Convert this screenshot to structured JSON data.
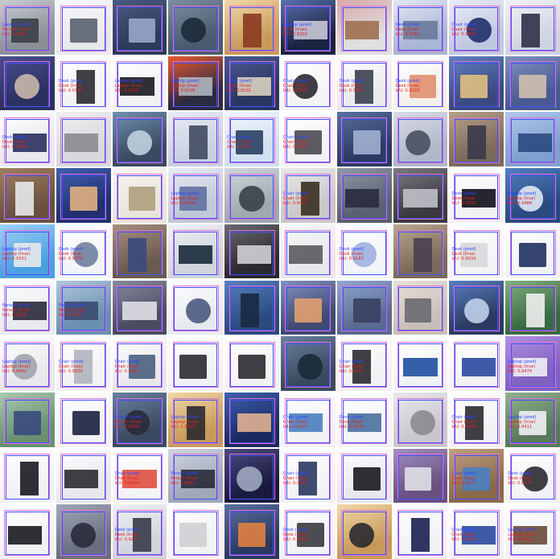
{
  "tiles": [
    {
      "pred": "Laptop (pred)",
      "true": "Person (true)",
      "iou": "IoU: 0.9442",
      "bg": "#8a8f96",
      "fg": "#c9cdd2",
      "obj": "#3a3f48"
    },
    {
      "pred": "",
      "true": "",
      "iou": "",
      "bg": "#e8e9ec",
      "fg": "#f7f7f8",
      "obj": "#5a6270"
    },
    {
      "pred": "",
      "true": "",
      "iou": "",
      "bg": "#2d3a5a",
      "fg": "#4a5a80",
      "obj": "#9aa6c8"
    },
    {
      "pred": "",
      "true": "",
      "iou": "",
      "bg": "#4a5b6e",
      "fg": "#7d8ea0",
      "obj": "#1e2a3a"
    },
    {
      "pred": "",
      "true": "",
      "iou": "",
      "bg": "#c89a5a",
      "fg": "#f0d8a8",
      "obj": "#8a3a20"
    },
    {
      "pred": "Laptop (pred)",
      "true": "Desk (true)",
      "iou": "IoU: 0.8302",
      "bg": "#1a2440",
      "fg": "#5870b0",
      "obj": "#c8c8d8"
    },
    {
      "pred": "",
      "true": "",
      "iou": "",
      "bg": "#e0e0e0",
      "fg": "#d8a8a8",
      "obj": "#a07050"
    },
    {
      "pred": "Desk (pred)",
      "true": "Desk (true)",
      "iou": "IoU: 0.9181",
      "bg": "#a9b6d4",
      "fg": "#e2e8f4",
      "obj": "#6a7a9a"
    },
    {
      "pred": "Chair (pred)",
      "true": "Chair (true)",
      "iou": "IoU: 0.9560",
      "bg": "#c0c8e0",
      "fg": "#e8ecf4",
      "obj": "#20306a"
    },
    {
      "pred": "",
      "true": "",
      "iou": "",
      "bg": "#d0d4e0",
      "fg": "#f0f2f6",
      "obj": "#30304a"
    },
    {
      "pred": "",
      "true": "",
      "iou": "",
      "bg": "#2a3060",
      "fg": "#4a4f90",
      "obj": "#c8b8a8"
    },
    {
      "pred": "Desk (pred)",
      "true": "Desk (true)",
      "iou": "IoU: 0.9117",
      "bg": "#f2f2f4",
      "fg": "#ffffff",
      "obj": "#2a2a30"
    },
    {
      "pred": "Laptop (pred)",
      "true": "Laptop (true)",
      "iou": "IoU: 0.9316",
      "bg": "#f2f2f4",
      "fg": "#ffffff",
      "obj": "#1a1a20"
    },
    {
      "pred": "Laptop (pred)",
      "true": "Laptop (true)",
      "iou": "IoU: 0.9208",
      "bg": "#2a2a40",
      "fg": "#e85a30",
      "obj": "#b0b4c0"
    },
    {
      "pred": "Chair (pred)",
      "true": "Chair (true)",
      "iou": "IoU: 0.9101",
      "bg": "#2a3560",
      "fg": "#4a5a90",
      "obj": "#d8d0c0"
    },
    {
      "pred": "Chair (pred)",
      "true": "Chair (true)",
      "iou": "IoU: 0.9230",
      "bg": "#f4f4f6",
      "fg": "#ffffff",
      "obj": "#2a2a30"
    },
    {
      "pred": "Desk (pred)",
      "true": "Desk (true)",
      "iou": "IoU: 0.9432",
      "bg": "#eaeaec",
      "fg": "#ffffff",
      "obj": "#3a4050"
    },
    {
      "pred": "Desk (pred)",
      "true": "Desk (true)",
      "iou": "IoU: 0.9325",
      "bg": "#f4f0ec",
      "fg": "#ffffff",
      "obj": "#e09070"
    },
    {
      "pred": "",
      "true": "",
      "iou": "",
      "bg": "#3a4a80",
      "fg": "#6080c0",
      "obj": "#e0c080"
    },
    {
      "pred": "",
      "true": "",
      "iou": "",
      "bg": "#4a5a90",
      "fg": "#8090c0",
      "obj": "#d0c0b0"
    },
    {
      "pred": "Desk (pred)",
      "true": "Desk (true)",
      "iou": "IoU: 0.9528",
      "bg": "#e8e8ee",
      "fg": "#ffffff",
      "obj": "#2a3060"
    },
    {
      "pred": "",
      "true": "",
      "iou": "",
      "bg": "#d8d8dc",
      "fg": "#f0f0f2",
      "obj": "#8a8a90"
    },
    {
      "pred": "",
      "true": "",
      "iou": "",
      "bg": "#3a4a60",
      "fg": "#7090b0",
      "obj": "#c0d0e0"
    },
    {
      "pred": "",
      "true": "",
      "iou": "",
      "bg": "#c8d0e0",
      "fg": "#e8ecf4",
      "obj": "#404a60"
    },
    {
      "pred": "Chair (pred)",
      "true": "Chair (true)",
      "iou": "IoU: 0.9124",
      "bg": "#d0e0f0",
      "fg": "#f0f6fc",
      "obj": "#2a4060"
    },
    {
      "pred": "Chair (pred)",
      "true": "Chair (true)",
      "iou": "IoU: 0.9462",
      "bg": "#f2f2f4",
      "fg": "#ffffff",
      "obj": "#4a4a50"
    },
    {
      "pred": "",
      "true": "",
      "iou": "",
      "bg": "#2a3a60",
      "fg": "#5a70a0",
      "obj": "#a0b0d0"
    },
    {
      "pred": "",
      "true": "",
      "iou": "",
      "bg": "#b0b8c8",
      "fg": "#d8dce6",
      "obj": "#4a5060"
    },
    {
      "pred": "",
      "true": "",
      "iou": "",
      "bg": "#7a6a5a",
      "fg": "#b8a088",
      "obj": "#3a3a4a"
    },
    {
      "pred": "",
      "true": "",
      "iou": "",
      "bg": "#80a0d0",
      "fg": "#b0c8ec",
      "obj": "#2a4a80"
    },
    {
      "pred": "",
      "true": "",
      "iou": "",
      "bg": "#6a5040",
      "fg": "#a08060",
      "obj": "#e8e8ec"
    },
    {
      "pred": "",
      "true": "",
      "iou": "",
      "bg": "#203070",
      "fg": "#4060b0",
      "obj": "#e0b080"
    },
    {
      "pred": "",
      "true": "",
      "iou": "",
      "bg": "#e8e4dc",
      "fg": "#f8f6f2",
      "obj": "#b0a080"
    },
    {
      "pred": "Laptop (pred)",
      "true": "Laptop (true)",
      "iou": "IoU: 0.9009",
      "bg": "#c0c8d8",
      "fg": "#e8ecf4",
      "obj": "#6070a0"
    },
    {
      "pred": "",
      "true": "",
      "iou": "",
      "bg": "#a0a8b0",
      "fg": "#d0d6dc",
      "obj": "#3a4048"
    },
    {
      "pred": "Chair (pred)",
      "true": "Chair (true)",
      "iou": "IoU: 0.9416",
      "bg": "#c8c8c8",
      "fg": "#e8e8e8",
      "obj": "#3a3020"
    },
    {
      "pred": "",
      "true": "",
      "iou": "",
      "bg": "#5a6070",
      "fg": "#9098a8",
      "obj": "#2a2a40"
    },
    {
      "pred": "",
      "true": "",
      "iou": "",
      "bg": "#3a3a40",
      "fg": "#7a7a80",
      "obj": "#c0c0c8"
    },
    {
      "pred": "Desk (pred)",
      "true": "Desk (true)",
      "iou": "IoU: 0.9301",
      "bg": "#f2f2f4",
      "fg": "#ffffff",
      "obj": "#101018"
    },
    {
      "pred": "Laptop (pred)",
      "true": "Laptop (true)",
      "iou": "IoU: 0.9486",
      "bg": "#2a4a80",
      "fg": "#5080c0",
      "obj": "#e0e8f4"
    },
    {
      "pred": "Laptop (pred)",
      "true": "Laptop (true)",
      "iou": "IoU: 0.9351",
      "bg": "#4aa0e0",
      "fg": "#a0d0f4",
      "obj": "#e8eaec"
    },
    {
      "pred": "Desk (pred)",
      "true": "Desk (true)",
      "iou": "IoU: 0.9370",
      "bg": "#f2f4f8",
      "fg": "#ffffff",
      "obj": "#7080a0"
    },
    {
      "pred": "",
      "true": "",
      "iou": "",
      "bg": "#6a5a50",
      "fg": "#a89080",
      "obj": "#3a4a80"
    },
    {
      "pred": "",
      "true": "",
      "iou": "",
      "bg": "#d0d4dc",
      "fg": "#eef0f4",
      "obj": "#1a2a3a"
    },
    {
      "pred": "",
      "true": "",
      "iou": "",
      "bg": "#2a2a30",
      "fg": "#6a6a70",
      "obj": "#d0d0d4"
    },
    {
      "pred": "",
      "true": "",
      "iou": "",
      "bg": "#e8e8ec",
      "fg": "#f8f8fa",
      "obj": "#5a5a60"
    },
    {
      "pred": "Desk (pred)",
      "true": "Desk (true)",
      "iou": "IoU: 0.9187",
      "bg": "#f2f4f8",
      "fg": "#ffffff",
      "obj": "#a0b0e0"
    },
    {
      "pred": "",
      "true": "",
      "iou": "",
      "bg": "#7a6a5a",
      "fg": "#b8a890",
      "obj": "#4a4050"
    },
    {
      "pred": "Desk (pred)",
      "true": "Desk (true)",
      "iou": "IoU: 0.9034",
      "bg": "#f4f4f6",
      "fg": "#ffffff",
      "obj": "#d8d8dc"
    },
    {
      "pred": "",
      "true": "",
      "iou": "",
      "bg": "#f2f2f4",
      "fg": "#ffffff",
      "obj": "#203060"
    },
    {
      "pred": "Person (pred)",
      "true": "Person (true)",
      "iou": "IoU: 0.9135",
      "bg": "#e8eaee",
      "fg": "#ffffff",
      "obj": "#2a2a3a"
    },
    {
      "pred": "Person (pred)",
      "true": "Person (true)",
      "iou": "IoU: 0.9091",
      "bg": "#6a90b0",
      "fg": "#b0c8dc",
      "obj": "#3a4a70"
    },
    {
      "pred": "",
      "true": "",
      "iou": "",
      "bg": "#4a4a60",
      "fg": "#8a8aa0",
      "obj": "#e0e0e8"
    },
    {
      "pred": "",
      "true": "",
      "iou": "",
      "bg": "#e8eaf0",
      "fg": "#ffffff",
      "obj": "#4a5a80"
    },
    {
      "pred": "",
      "true": "",
      "iou": "",
      "bg": "#2a4a80",
      "fg": "#5a80c0",
      "obj": "#1a2a40"
    },
    {
      "pred": "",
      "true": "",
      "iou": "",
      "bg": "#404a70",
      "fg": "#8090c0",
      "obj": "#e0a070"
    },
    {
      "pred": "",
      "true": "",
      "iou": "",
      "bg": "#5a6a90",
      "fg": "#90a8d0",
      "obj": "#3a4060"
    },
    {
      "pred": "",
      "true": "",
      "iou": "",
      "bg": "#c8c0b8",
      "fg": "#e8e0d8",
      "obj": "#6a6a70"
    },
    {
      "pred": "",
      "true": "",
      "iou": "",
      "bg": "#2a3a60",
      "fg": "#5a80c0",
      "obj": "#c0d0e8"
    },
    {
      "pred": "",
      "true": "",
      "iou": "",
      "bg": "#3a6a40",
      "fg": "#80b080",
      "obj": "#f0f0f0"
    },
    {
      "pred": "Laptop (pred)",
      "true": "Laptop (true)",
      "iou": "IoU: 0.9442",
      "bg": "#e8e8ec",
      "fg": "#ffffff",
      "obj": "#a0a4ac"
    },
    {
      "pred": "Chair (pred)",
      "true": "Chair (true)",
      "iou": "IoU: 0.9530",
      "bg": "#f2f2f4",
      "fg": "#ffffff",
      "obj": "#b0b4bc"
    },
    {
      "pred": "Chair (pred)",
      "true": "Chair (true)",
      "iou": "IoU: 0.9404",
      "bg": "#e8e8ec",
      "fg": "#ffffff",
      "obj": "#4a6080"
    },
    {
      "pred": "",
      "true": "",
      "iou": "",
      "bg": "#f2f2f4",
      "fg": "#ffffff",
      "obj": "#2a2a30"
    },
    {
      "pred": "",
      "true": "",
      "iou": "",
      "bg": "#f2f2f4",
      "fg": "#ffffff",
      "obj": "#2a2a30"
    },
    {
      "pred": "",
      "true": "",
      "iou": "",
      "bg": "#3a4a60",
      "fg": "#6a80a0",
      "obj": "#1a2a3a"
    },
    {
      "pred": "Chair (pred)",
      "true": "Chair (true)",
      "iou": "IoU: 0.9373",
      "bg": "#f2f2f4",
      "fg": "#ffffff",
      "obj": "#2a2a30"
    },
    {
      "pred": "",
      "true": "",
      "iou": "",
      "bg": "#f2f2f4",
      "fg": "#ffffff",
      "obj": "#2050a0"
    },
    {
      "pred": "",
      "true": "",
      "iou": "",
      "bg": "#f2f2f4",
      "fg": "#ffffff",
      "obj": "#2a4aa0"
    },
    {
      "pred": "Laptop (pred)",
      "true": "Laptop (true)",
      "iou": "IoU: 0.9479",
      "bg": "#8060c0",
      "fg": "#b090e0",
      "obj": "#f0f0f4"
    },
    {
      "pred": "",
      "true": "",
      "iou": "",
      "bg": "#6a9070",
      "fg": "#a8c8b0",
      "obj": "#3a4a80"
    },
    {
      "pred": "",
      "true": "",
      "iou": "",
      "bg": "#f2f2f4",
      "fg": "#ffffff",
      "obj": "#1a2040"
    },
    {
      "pred": "Person (pred)",
      "true": "Person (true)",
      "iou": "IoU: 0.9099",
      "bg": "#3a4a60",
      "fg": "#6a80a0",
      "obj": "#2a2a3a"
    },
    {
      "pred": "Laptop (pred)",
      "true": "Laptop (true)",
      "iou": "IoU: 0.9020",
      "bg": "#c89a5a",
      "fg": "#f0d8a8",
      "obj": "#2a2a30"
    },
    {
      "pred": "",
      "true": "",
      "iou": "",
      "bg": "#1a2a60",
      "fg": "#4060b0",
      "obj": "#e0b090"
    },
    {
      "pred": "Chair (pred)",
      "true": "Chair (true)",
      "iou": "IoU: 0.9407",
      "bg": "#f2f2f4",
      "fg": "#ffffff",
      "obj": "#4a80c0"
    },
    {
      "pred": "Desk (pred)",
      "true": "Desk (true)",
      "iou": "IoU: 0.9040",
      "bg": "#f2f4f8",
      "fg": "#ffffff",
      "obj": "#4a70a0"
    },
    {
      "pred": "",
      "true": "",
      "iou": "",
      "bg": "#c8c8cc",
      "fg": "#e8e8ec",
      "obj": "#8a8a90"
    },
    {
      "pred": "Chair (pred)",
      "true": "Chair (true)",
      "iou": "IoU: 0.9458",
      "bg": "#f2f2f4",
      "fg": "#ffffff",
      "obj": "#2a2a30"
    },
    {
      "pred": "Laptop (pred)",
      "true": "Laptop (true)",
      "iou": "IoU: 0.9411",
      "bg": "#5a7a5a",
      "fg": "#90b090",
      "obj": "#f0f0f4"
    },
    {
      "pred": "",
      "true": "",
      "iou": "",
      "bg": "#f2f2f4",
      "fg": "#ffffff",
      "obj": "#1a1a20"
    },
    {
      "pred": "",
      "true": "",
      "iou": "",
      "bg": "#e8e8ec",
      "fg": "#ffffff",
      "obj": "#2a2a30"
    },
    {
      "pred": "Chair (pred)",
      "true": "Chair (true)",
      "iou": "IoU: 0.9264",
      "bg": "#f4f4f6",
      "fg": "#ffffff",
      "obj": "#e05040"
    },
    {
      "pred": "Person (pred)",
      "true": "Person (true)",
      "iou": "IoU: 0.9042",
      "bg": "#a0a8b8",
      "fg": "#d0d6e0",
      "obj": "#2a2a3a"
    },
    {
      "pred": "",
      "true": "",
      "iou": "",
      "bg": "#1a1a40",
      "fg": "#4a4a80",
      "obj": "#a0a8c0"
    },
    {
      "pred": "Chair (pred)",
      "true": "Chair (true)",
      "iou": "IoU: 0.9280",
      "bg": "#f2f2f4",
      "fg": "#ffffff",
      "obj": "#2a3a60"
    },
    {
      "pred": "",
      "true": "",
      "iou": "",
      "bg": "#e8e8ec",
      "fg": "#ffffff",
      "obj": "#1a1a20"
    },
    {
      "pred": "",
      "true": "",
      "iou": "",
      "bg": "#6a5080",
      "fg": "#a090c0",
      "obj": "#e0e0e8"
    },
    {
      "pred": "Chair (pred)",
      "true": "Chair (true)",
      "iou": "IoU: 0.9271",
      "bg": "#8a6a4a",
      "fg": "#c0a080",
      "obj": "#4a80c0"
    },
    {
      "pred": "Desk (pred)",
      "true": "Desk (true)",
      "iou": "IoU: 0.9579",
      "bg": "#f2f2f4",
      "fg": "#ffffff",
      "obj": "#2a2a30"
    },
    {
      "pred": "",
      "true": "",
      "iou": "",
      "bg": "#f2f2f4",
      "fg": "#ffffff",
      "obj": "#1a1a20"
    },
    {
      "pred": "",
      "true": "",
      "iou": "",
      "bg": "#6a7080",
      "fg": "#a0a8b8",
      "obj": "#2a2a3a"
    },
    {
      "pred": "Desk (pred)",
      "true": "Desk (true)",
      "iou": "IoU: 0.9277",
      "bg": "#d0d4dc",
      "fg": "#eef0f4",
      "obj": "#3a3a48"
    },
    {
      "pred": "",
      "true": "",
      "iou": "",
      "bg": "#f2f2f4",
      "fg": "#ffffff",
      "obj": "#d0d0d4"
    },
    {
      "pred": "",
      "true": "",
      "iou": "",
      "bg": "#2a3a60",
      "fg": "#5a70a0",
      "obj": "#e08040"
    },
    {
      "pred": "Desk (pred)",
      "true": "Desk (true)",
      "iou": "IoU: 0.9454",
      "bg": "#f2f2f4",
      "fg": "#ffffff",
      "obj": "#3a3a40"
    },
    {
      "pred": "",
      "true": "",
      "iou": "",
      "bg": "#c89a5a",
      "fg": "#f0d8a8",
      "obj": "#2a2a30"
    },
    {
      "pred": "",
      "true": "",
      "iou": "",
      "bg": "#f2f2f4",
      "fg": "#ffffff",
      "obj": "#1a2050"
    },
    {
      "pred": "Chair (pred)",
      "true": "Chair (true)",
      "iou": "IoU: 0.9399",
      "bg": "#f2f2f4",
      "fg": "#ffffff",
      "obj": "#2a4aa0"
    },
    {
      "pred": "Laptop (pred)",
      "true": "Laptop (true)",
      "iou": "IoU: 0.9462",
      "bg": "#f2f2f4",
      "fg": "#ffffff",
      "obj": "#6a4a3a"
    }
  ]
}
